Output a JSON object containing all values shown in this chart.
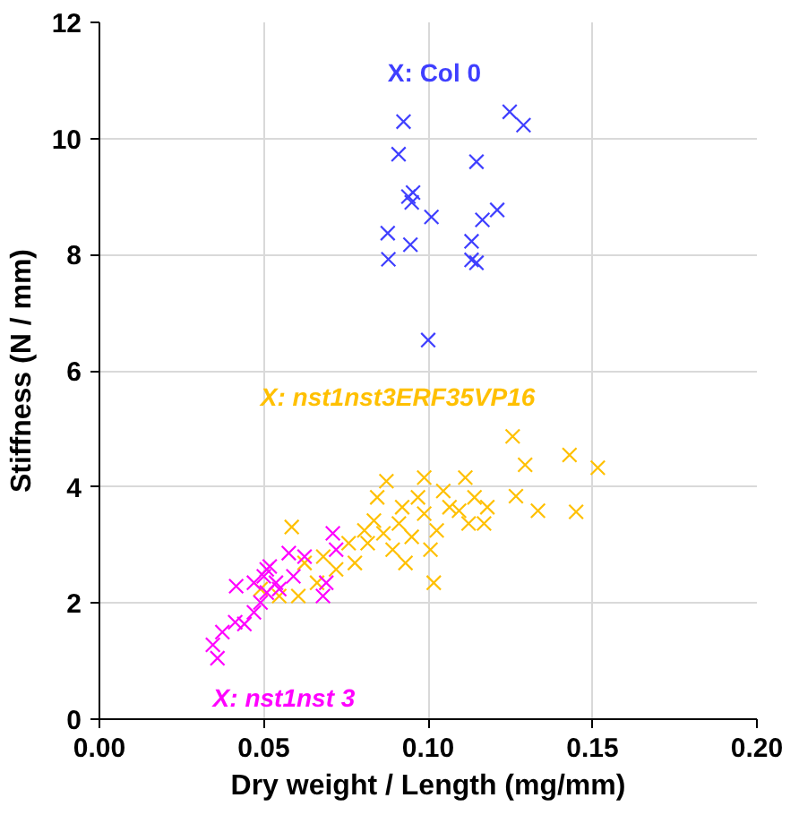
{
  "chart_data": {
    "type": "scatter",
    "xlabel": "Dry weight / Length (mg/mm)",
    "ylabel": "Stiffness (N / mm)",
    "xlim": [
      0,
      0.2
    ],
    "ylim": [
      0,
      12
    ],
    "xticks": [
      {
        "value": 0,
        "label": "0.00"
      },
      {
        "value": 0.05,
        "label": "0.05"
      },
      {
        "value": 0.1,
        "label": "0.10"
      },
      {
        "value": 0.15,
        "label": "0.15"
      },
      {
        "value": 0.2,
        "label": "0.20"
      }
    ],
    "yticks": [
      0,
      2,
      4,
      6,
      8,
      10,
      12
    ],
    "grid": true,
    "marker": "cross",
    "series": [
      {
        "name": "X: Col 0",
        "color": "#3f3fff",
        "x": [
          0.0925,
          0.091,
          0.0954,
          0.095,
          0.094,
          0.101,
          0.0877,
          0.0879,
          0.0946,
          0.1,
          0.1248,
          0.129,
          0.1147,
          0.121,
          0.1165,
          0.1132,
          0.1132,
          0.1147
        ],
        "values": [
          10.29,
          9.73,
          9.07,
          8.9,
          9.0,
          8.65,
          8.37,
          7.92,
          8.17,
          6.53,
          10.46,
          10.23,
          9.6,
          8.77,
          8.6,
          8.23,
          7.91,
          7.86
        ]
      },
      {
        "name": "X: nst1nst3ERF35VP16",
        "color": "#ffc000",
        "x": [
          0.0585,
          0.1257,
          0.1295,
          0.143,
          0.1516,
          0.1267,
          0.1334,
          0.145,
          0.0988,
          0.1113,
          0.1017,
          0.117,
          0.1065,
          0.0873,
          0.0845,
          0.0911,
          0.0816,
          0.0777,
          0.072,
          0.0662,
          0.0547,
          0.049,
          0.095,
          0.1026,
          0.1094,
          0.1141,
          0.0921,
          0.0892,
          0.0835,
          0.0864,
          0.0988,
          0.1046,
          0.118,
          0.0969,
          0.0806,
          0.0758,
          0.0624,
          0.0605,
          0.0681,
          0.0931,
          0.1123,
          0.1007
        ],
        "values": [
          3.31,
          4.87,
          4.38,
          4.55,
          4.33,
          3.84,
          3.59,
          3.57,
          4.16,
          4.16,
          2.35,
          3.37,
          3.65,
          4.1,
          3.82,
          3.37,
          3.03,
          2.69,
          2.58,
          2.35,
          2.12,
          2.24,
          3.14,
          3.25,
          3.59,
          3.82,
          3.65,
          2.92,
          3.42,
          3.2,
          3.54,
          3.93,
          3.65,
          3.82,
          3.25,
          3.03,
          2.69,
          2.12,
          2.8,
          2.69,
          3.37,
          2.92
        ]
      },
      {
        "name": "X: nst1nst 3",
        "color": "#ff00ff",
        "x": [
          0.0359,
          0.0345,
          0.0374,
          0.0413,
          0.0441,
          0.0416,
          0.047,
          0.05,
          0.0518,
          0.0509,
          0.0576,
          0.0537,
          0.049,
          0.071,
          0.072,
          0.0624,
          0.069,
          0.068,
          0.0509,
          0.0547,
          0.047,
          0.059
        ],
        "values": [
          1.05,
          1.28,
          1.5,
          1.67,
          1.64,
          2.29,
          1.84,
          2.46,
          2.63,
          2.18,
          2.86,
          2.35,
          2.01,
          3.2,
          2.92,
          2.8,
          2.35,
          2.12,
          2.58,
          2.24,
          2.35,
          2.46
        ]
      }
    ]
  }
}
